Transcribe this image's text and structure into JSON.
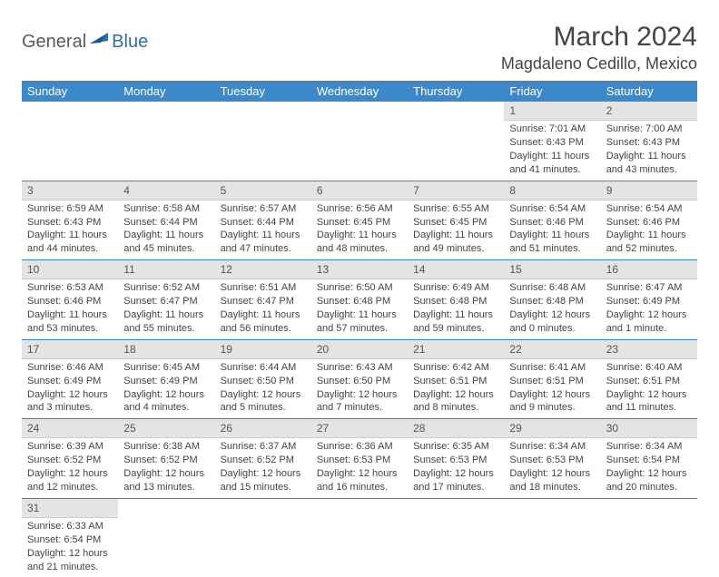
{
  "logo": {
    "general": "General",
    "blue": "Blue"
  },
  "title": "March 2024",
  "location": "Magdaleno Cedillo, Mexico",
  "colors": {
    "header_bg": "#3b89c9",
    "header_text": "#ffffff",
    "daynum_bg": "#e4e4e4",
    "border": "#3b89c9",
    "logo_gray": "#5a5a5a",
    "logo_blue": "#2f6fa8"
  },
  "weekdays": [
    "Sunday",
    "Monday",
    "Tuesday",
    "Wednesday",
    "Thursday",
    "Friday",
    "Saturday"
  ],
  "weeks": [
    [
      null,
      null,
      null,
      null,
      null,
      {
        "n": "1",
        "sr": "Sunrise: 7:01 AM",
        "ss": "Sunset: 6:43 PM",
        "dl1": "Daylight: 11 hours",
        "dl2": "and 41 minutes."
      },
      {
        "n": "2",
        "sr": "Sunrise: 7:00 AM",
        "ss": "Sunset: 6:43 PM",
        "dl1": "Daylight: 11 hours",
        "dl2": "and 43 minutes."
      }
    ],
    [
      {
        "n": "3",
        "sr": "Sunrise: 6:59 AM",
        "ss": "Sunset: 6:43 PM",
        "dl1": "Daylight: 11 hours",
        "dl2": "and 44 minutes."
      },
      {
        "n": "4",
        "sr": "Sunrise: 6:58 AM",
        "ss": "Sunset: 6:44 PM",
        "dl1": "Daylight: 11 hours",
        "dl2": "and 45 minutes."
      },
      {
        "n": "5",
        "sr": "Sunrise: 6:57 AM",
        "ss": "Sunset: 6:44 PM",
        "dl1": "Daylight: 11 hours",
        "dl2": "and 47 minutes."
      },
      {
        "n": "6",
        "sr": "Sunrise: 6:56 AM",
        "ss": "Sunset: 6:45 PM",
        "dl1": "Daylight: 11 hours",
        "dl2": "and 48 minutes."
      },
      {
        "n": "7",
        "sr": "Sunrise: 6:55 AM",
        "ss": "Sunset: 6:45 PM",
        "dl1": "Daylight: 11 hours",
        "dl2": "and 49 minutes."
      },
      {
        "n": "8",
        "sr": "Sunrise: 6:54 AM",
        "ss": "Sunset: 6:46 PM",
        "dl1": "Daylight: 11 hours",
        "dl2": "and 51 minutes."
      },
      {
        "n": "9",
        "sr": "Sunrise: 6:54 AM",
        "ss": "Sunset: 6:46 PM",
        "dl1": "Daylight: 11 hours",
        "dl2": "and 52 minutes."
      }
    ],
    [
      {
        "n": "10",
        "sr": "Sunrise: 6:53 AM",
        "ss": "Sunset: 6:46 PM",
        "dl1": "Daylight: 11 hours",
        "dl2": "and 53 minutes."
      },
      {
        "n": "11",
        "sr": "Sunrise: 6:52 AM",
        "ss": "Sunset: 6:47 PM",
        "dl1": "Daylight: 11 hours",
        "dl2": "and 55 minutes."
      },
      {
        "n": "12",
        "sr": "Sunrise: 6:51 AM",
        "ss": "Sunset: 6:47 PM",
        "dl1": "Daylight: 11 hours",
        "dl2": "and 56 minutes."
      },
      {
        "n": "13",
        "sr": "Sunrise: 6:50 AM",
        "ss": "Sunset: 6:48 PM",
        "dl1": "Daylight: 11 hours",
        "dl2": "and 57 minutes."
      },
      {
        "n": "14",
        "sr": "Sunrise: 6:49 AM",
        "ss": "Sunset: 6:48 PM",
        "dl1": "Daylight: 11 hours",
        "dl2": "and 59 minutes."
      },
      {
        "n": "15",
        "sr": "Sunrise: 6:48 AM",
        "ss": "Sunset: 6:48 PM",
        "dl1": "Daylight: 12 hours",
        "dl2": "and 0 minutes."
      },
      {
        "n": "16",
        "sr": "Sunrise: 6:47 AM",
        "ss": "Sunset: 6:49 PM",
        "dl1": "Daylight: 12 hours",
        "dl2": "and 1 minute."
      }
    ],
    [
      {
        "n": "17",
        "sr": "Sunrise: 6:46 AM",
        "ss": "Sunset: 6:49 PM",
        "dl1": "Daylight: 12 hours",
        "dl2": "and 3 minutes."
      },
      {
        "n": "18",
        "sr": "Sunrise: 6:45 AM",
        "ss": "Sunset: 6:49 PM",
        "dl1": "Daylight: 12 hours",
        "dl2": "and 4 minutes."
      },
      {
        "n": "19",
        "sr": "Sunrise: 6:44 AM",
        "ss": "Sunset: 6:50 PM",
        "dl1": "Daylight: 12 hours",
        "dl2": "and 5 minutes."
      },
      {
        "n": "20",
        "sr": "Sunrise: 6:43 AM",
        "ss": "Sunset: 6:50 PM",
        "dl1": "Daylight: 12 hours",
        "dl2": "and 7 minutes."
      },
      {
        "n": "21",
        "sr": "Sunrise: 6:42 AM",
        "ss": "Sunset: 6:51 PM",
        "dl1": "Daylight: 12 hours",
        "dl2": "and 8 minutes."
      },
      {
        "n": "22",
        "sr": "Sunrise: 6:41 AM",
        "ss": "Sunset: 6:51 PM",
        "dl1": "Daylight: 12 hours",
        "dl2": "and 9 minutes."
      },
      {
        "n": "23",
        "sr": "Sunrise: 6:40 AM",
        "ss": "Sunset: 6:51 PM",
        "dl1": "Daylight: 12 hours",
        "dl2": "and 11 minutes."
      }
    ],
    [
      {
        "n": "24",
        "sr": "Sunrise: 6:39 AM",
        "ss": "Sunset: 6:52 PM",
        "dl1": "Daylight: 12 hours",
        "dl2": "and 12 minutes."
      },
      {
        "n": "25",
        "sr": "Sunrise: 6:38 AM",
        "ss": "Sunset: 6:52 PM",
        "dl1": "Daylight: 12 hours",
        "dl2": "and 13 minutes."
      },
      {
        "n": "26",
        "sr": "Sunrise: 6:37 AM",
        "ss": "Sunset: 6:52 PM",
        "dl1": "Daylight: 12 hours",
        "dl2": "and 15 minutes."
      },
      {
        "n": "27",
        "sr": "Sunrise: 6:36 AM",
        "ss": "Sunset: 6:53 PM",
        "dl1": "Daylight: 12 hours",
        "dl2": "and 16 minutes."
      },
      {
        "n": "28",
        "sr": "Sunrise: 6:35 AM",
        "ss": "Sunset: 6:53 PM",
        "dl1": "Daylight: 12 hours",
        "dl2": "and 17 minutes."
      },
      {
        "n": "29",
        "sr": "Sunrise: 6:34 AM",
        "ss": "Sunset: 6:53 PM",
        "dl1": "Daylight: 12 hours",
        "dl2": "and 18 minutes."
      },
      {
        "n": "30",
        "sr": "Sunrise: 6:34 AM",
        "ss": "Sunset: 6:54 PM",
        "dl1": "Daylight: 12 hours",
        "dl2": "and 20 minutes."
      }
    ],
    [
      {
        "n": "31",
        "sr": "Sunrise: 6:33 AM",
        "ss": "Sunset: 6:54 PM",
        "dl1": "Daylight: 12 hours",
        "dl2": "and 21 minutes."
      },
      null,
      null,
      null,
      null,
      null,
      null
    ]
  ]
}
